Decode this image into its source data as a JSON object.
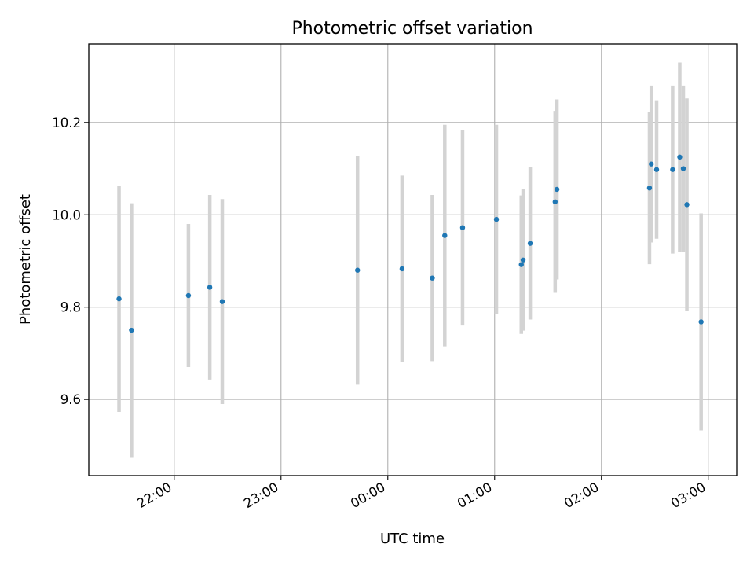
{
  "chart_data": {
    "type": "scatter",
    "title": "Photometric offset variation",
    "xlabel": "UTC time",
    "ylabel": "Photometric offset",
    "x_axis": "time",
    "xlim": [
      "21:12",
      "03:16"
    ],
    "ylim": [
      9.435,
      10.37
    ],
    "xticks": [
      "22:00",
      "23:00",
      "00:00",
      "01:00",
      "02:00",
      "03:00"
    ],
    "yticks": [
      9.6,
      9.8,
      10.0,
      10.2
    ],
    "grid": true,
    "colors": {
      "point": "#1f77b4",
      "errorbar": "#d3d3d3"
    },
    "points": [
      {
        "x": "21:29",
        "y": 9.818,
        "yerr": 0.245
      },
      {
        "x": "21:36",
        "y": 9.75,
        "yerr": 0.275
      },
      {
        "x": "22:08",
        "y": 9.825,
        "yerr": 0.155
      },
      {
        "x": "22:20",
        "y": 9.843,
        "yerr": 0.2
      },
      {
        "x": "22:27",
        "y": 9.812,
        "yerr": 0.222
      },
      {
        "x": "23:43",
        "y": 9.88,
        "yerr": 0.248
      },
      {
        "x": "00:08",
        "y": 9.883,
        "yerr": 0.202
      },
      {
        "x": "00:25",
        "y": 9.863,
        "yerr": 0.18
      },
      {
        "x": "00:32",
        "y": 9.955,
        "yerr": 0.24
      },
      {
        "x": "00:42",
        "y": 9.972,
        "yerr": 0.212
      },
      {
        "x": "01:01",
        "y": 9.99,
        "yerr": 0.205
      },
      {
        "x": "01:15",
        "y": 9.892,
        "yerr": 0.15
      },
      {
        "x": "01:16",
        "y": 9.902,
        "yerr": 0.153
      },
      {
        "x": "01:20",
        "y": 9.938,
        "yerr": 0.165
      },
      {
        "x": "01:34",
        "y": 10.028,
        "yerr": 0.197
      },
      {
        "x": "01:35",
        "y": 10.055,
        "yerr": 0.195
      },
      {
        "x": "02:27",
        "y": 10.058,
        "yerr": 0.165
      },
      {
        "x": "02:28",
        "y": 10.11,
        "yerr": 0.17
      },
      {
        "x": "02:31",
        "y": 10.098,
        "yerr": 0.15
      },
      {
        "x": "02:40",
        "y": 10.098,
        "yerr": 0.182
      },
      {
        "x": "02:44",
        "y": 10.125,
        "yerr": 0.205
      },
      {
        "x": "02:46",
        "y": 10.1,
        "yerr": 0.18
      },
      {
        "x": "02:48",
        "y": 10.022,
        "yerr": 0.23
      },
      {
        "x": "02:56",
        "y": 9.768,
        "yerr": 0.235
      }
    ]
  }
}
